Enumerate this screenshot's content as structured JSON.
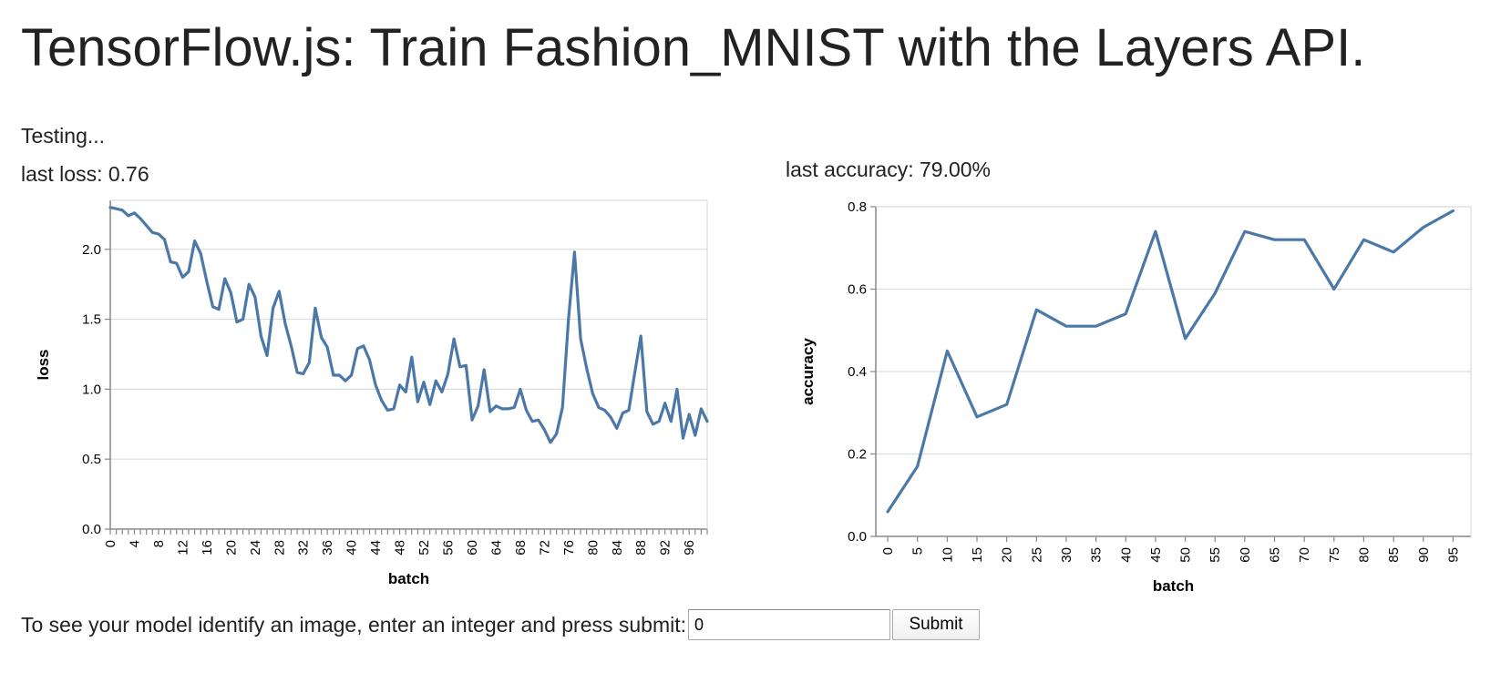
{
  "page": {
    "title": "TensorFlow.js: Train Fashion_MNIST with the Layers API.",
    "status": "Testing...",
    "last_loss_label": "last loss: 0.76",
    "last_accuracy_label": "last accuracy: 79.00%"
  },
  "prompt": {
    "label": "To see your model identify an image, enter an integer and press submit:",
    "input_value": "0",
    "submit_label": "Submit"
  },
  "colors": {
    "series": "#4c78a8",
    "grid": "#dddddd",
    "axis": "#888888"
  },
  "chart_data": [
    {
      "type": "line",
      "xlabel": "batch",
      "ylabel": "loss",
      "xlim": [
        0,
        99
      ],
      "ylim": [
        0,
        2.35
      ],
      "yticks": [
        0.0,
        0.5,
        1.0,
        1.5,
        2.0
      ],
      "xticks": [
        0,
        4,
        8,
        12,
        16,
        20,
        24,
        28,
        32,
        36,
        40,
        44,
        48,
        52,
        56,
        60,
        64,
        68,
        72,
        76,
        80,
        84,
        88,
        92,
        96
      ],
      "ytick_labels": [
        "0.0",
        "0.5",
        "1.0",
        "1.5",
        "2.0"
      ],
      "xtick_labels": [
        "0",
        "4",
        "8",
        "12",
        "16",
        "20",
        "24",
        "28",
        "32",
        "36",
        "40",
        "44",
        "48",
        "52",
        "56",
        "60",
        "64",
        "68",
        "72",
        "76",
        "80",
        "84",
        "88",
        "92",
        "96"
      ],
      "grid": true,
      "series": [
        {
          "values": [
            2.3,
            2.29,
            2.28,
            2.24,
            2.26,
            2.22,
            2.17,
            2.12,
            2.11,
            2.07,
            1.91,
            1.9,
            1.8,
            1.84,
            2.06,
            1.97,
            1.77,
            1.59,
            1.57,
            1.79,
            1.69,
            1.48,
            1.5,
            1.75,
            1.66,
            1.38,
            1.24,
            1.58,
            1.7,
            1.47,
            1.31,
            1.12,
            1.11,
            1.19,
            1.58,
            1.37,
            1.3,
            1.1,
            1.1,
            1.06,
            1.1,
            1.29,
            1.31,
            1.21,
            1.03,
            0.92,
            0.85,
            0.86,
            1.03,
            0.98,
            1.23,
            0.91,
            1.05,
            0.89,
            1.06,
            0.98,
            1.11,
            1.36,
            1.16,
            1.17,
            0.78,
            0.88,
            1.14,
            0.84,
            0.88,
            0.86,
            0.86,
            0.87,
            1.0,
            0.85,
            0.77,
            0.78,
            0.71,
            0.62,
            0.68,
            0.87,
            1.5,
            1.98,
            1.36,
            1.15,
            0.97,
            0.87,
            0.85,
            0.8,
            0.72,
            0.83,
            0.85,
            1.12,
            1.38,
            0.84,
            0.75,
            0.77,
            0.9,
            0.77,
            1.0,
            0.65,
            0.82,
            0.67,
            0.86,
            0.77
          ]
        }
      ]
    },
    {
      "type": "line",
      "xlabel": "batch",
      "ylabel": "accuracy",
      "xlim": [
        -2,
        98
      ],
      "ylim": [
        0,
        0.8
      ],
      "yticks": [
        0.0,
        0.2,
        0.4,
        0.6,
        0.8
      ],
      "ytick_labels": [
        "0.0",
        "0.2",
        "0.4",
        "0.6",
        "0.8"
      ],
      "xtick_labels": [
        "0",
        "5",
        "10",
        "15",
        "20",
        "25",
        "30",
        "35",
        "40",
        "45",
        "50",
        "55",
        "60",
        "65",
        "70",
        "75",
        "80",
        "85",
        "90",
        "95"
      ],
      "grid": true,
      "series": [
        {
          "x": [
            0,
            5,
            10,
            15,
            20,
            25,
            30,
            35,
            40,
            45,
            50,
            55,
            60,
            65,
            70,
            75,
            80,
            85,
            90,
            95
          ],
          "values": [
            0.06,
            0.17,
            0.45,
            0.29,
            0.32,
            0.55,
            0.51,
            0.51,
            0.54,
            0.74,
            0.48,
            0.59,
            0.74,
            0.72,
            0.72,
            0.6,
            0.72,
            0.69,
            0.75,
            0.79
          ]
        }
      ]
    }
  ]
}
